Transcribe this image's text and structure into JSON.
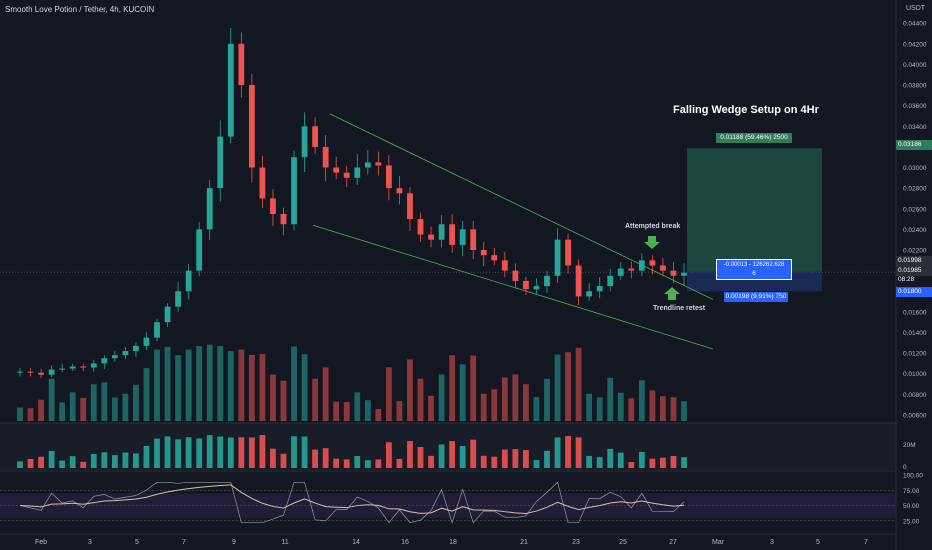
{
  "header": {
    "title": "Smooth Love Potion / Tether, 4h, KUCOIN",
    "currency": "USDT"
  },
  "annotations": {
    "headline": "Falling Wedge Setup on 4Hr",
    "attempted_break": "Attempted break",
    "trendline_retest": "Trendline retest",
    "target_label": "0.01188 (59.46%) 2500",
    "stop_label": "0.00198 (9.91%) 750",
    "position_line1": "-0.00013 - 126262.628",
    "position_line2": "6",
    "countdown": "08:28"
  },
  "price_labels": {
    "target": "0.03186",
    "current_high": "0.01998",
    "current": "0.01985",
    "stop": "0.01800"
  },
  "colors": {
    "background": "#131722",
    "up": "#26a69a",
    "down": "#ef5350",
    "wedge_line": "#4caf50",
    "target_zone": "#1e4d43",
    "stop_zone": "#1c2c5a",
    "rsi_line": "#d1c4a3",
    "rsi_band": "#2a2140"
  },
  "chart_data": {
    "type": "candlestick",
    "title": "Smooth Love Potion / Tether, 4h, KUCOIN",
    "y_axis": {
      "unit": "USDT",
      "ticks": [
        "0.04400",
        "0.04200",
        "0.04000",
        "0.03800",
        "0.03600",
        "0.03400",
        "0.03200",
        "0.03000",
        "0.02800",
        "0.02600",
        "0.02400",
        "0.02200",
        "0.02000",
        "0.01800",
        "0.01600",
        "0.01400",
        "0.01200",
        "0.01000",
        "0.00800",
        "0.00600"
      ],
      "range": [
        0.0059,
        0.0446
      ]
    },
    "x_axis": {
      "ticks": [
        "Feb",
        "3",
        "5",
        "7",
        "9",
        "11",
        "14",
        "16",
        "18",
        "21",
        "23",
        "25",
        "27",
        "Mar",
        "3",
        "5",
        "7"
      ]
    },
    "close_series": [
      0.0102,
      0.0101,
      0.0099,
      0.0104,
      0.0105,
      0.0107,
      0.0106,
      0.011,
      0.0115,
      0.0118,
      0.0122,
      0.0127,
      0.0135,
      0.015,
      0.0165,
      0.018,
      0.02,
      0.024,
      0.028,
      0.033,
      0.042,
      0.038,
      0.03,
      0.027,
      0.0255,
      0.0245,
      0.031,
      0.034,
      0.032,
      0.03,
      0.0295,
      0.029,
      0.03,
      0.0305,
      0.0302,
      0.028,
      0.0275,
      0.025,
      0.0235,
      0.023,
      0.0245,
      0.0225,
      0.024,
      0.022,
      0.0215,
      0.021,
      0.02,
      0.019,
      0.0182,
      0.0185,
      0.0195,
      0.023,
      0.0205,
      0.0175,
      0.018,
      0.0185,
      0.0195,
      0.0202,
      0.02,
      0.021,
      0.0205,
      0.02,
      0.0195,
      0.0198
    ],
    "volume_axis": {
      "ticks": [
        "20M",
        "0"
      ]
    },
    "rsi": {
      "ticks": [
        "100.00",
        "75.00",
        "50.00",
        "25.00"
      ],
      "band": [
        30,
        70
      ],
      "last": 52
    },
    "trade_setup": {
      "entry": 0.0199,
      "target": 0.03186,
      "stop": 0.018
    }
  }
}
